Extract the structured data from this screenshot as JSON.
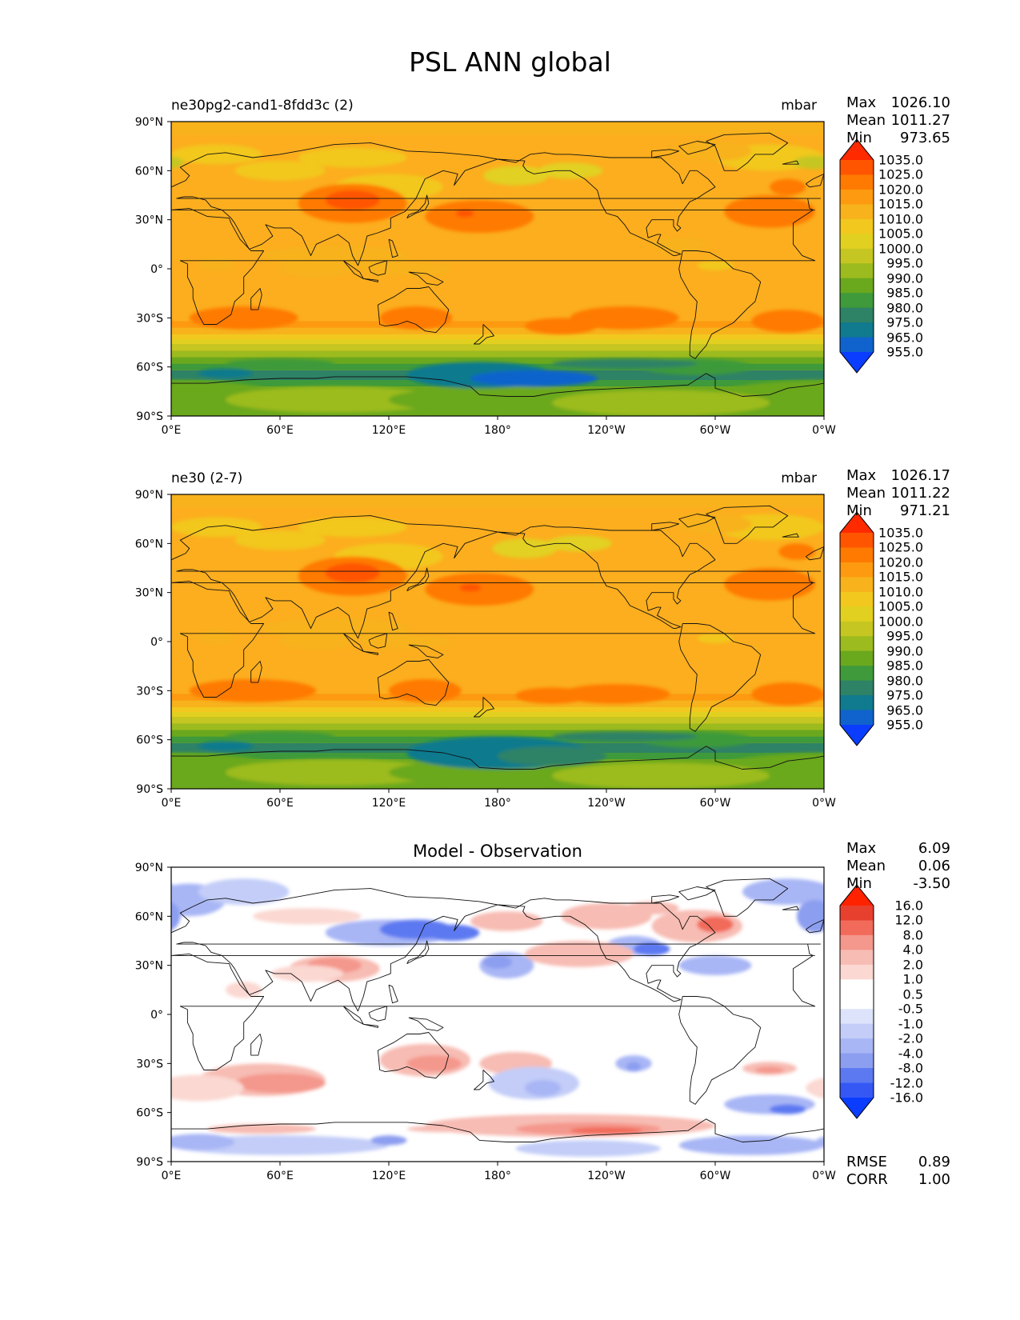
{
  "title": "PSL ANN global",
  "chart_data": [
    {
      "type": "heatmap",
      "subtitle_left": "ne30pg2-cand1-8fdd3c (2)",
      "subtitle_right": "mbar",
      "stats": [
        {
          "label": "Max",
          "value": "1026.10"
        },
        {
          "label": "Mean",
          "value": "1011.27"
        },
        {
          "label": "Min",
          "value": "973.65"
        }
      ],
      "x_ticks": [
        "0°E",
        "60°E",
        "120°E",
        "180°",
        "120°W",
        "60°W",
        "0°W"
      ],
      "y_ticks": [
        "90°N",
        "60°N",
        "30°N",
        "0°",
        "30°S",
        "60°S",
        "90°S"
      ],
      "colorbar_levels": [
        "1035.0",
        "1025.0",
        "1020.0",
        "1015.0",
        "1010.0",
        "1005.0",
        "1000.0",
        "995.0",
        "990.0",
        "985.0",
        "980.0",
        "975.0",
        "965.0",
        "955.0"
      ],
      "extra_stats": []
    },
    {
      "type": "heatmap",
      "subtitle_left": "ne30 (2-7)",
      "subtitle_right": "mbar",
      "stats": [
        {
          "label": "Max",
          "value": "1026.17"
        },
        {
          "label": "Mean",
          "value": "1011.22"
        },
        {
          "label": "Min",
          "value": "971.21"
        }
      ],
      "x_ticks": [
        "0°E",
        "60°E",
        "120°E",
        "180°",
        "120°W",
        "60°W",
        "0°W"
      ],
      "y_ticks": [
        "90°N",
        "60°N",
        "30°N",
        "0°",
        "30°S",
        "60°S",
        "90°S"
      ],
      "colorbar_levels": [
        "1035.0",
        "1025.0",
        "1020.0",
        "1015.0",
        "1010.0",
        "1005.0",
        "1000.0",
        "995.0",
        "990.0",
        "985.0",
        "980.0",
        "975.0",
        "965.0",
        "955.0"
      ],
      "extra_stats": []
    },
    {
      "type": "heatmap",
      "title": "Model - Observation",
      "stats": [
        {
          "label": "Max",
          "value": "6.09"
        },
        {
          "label": "Mean",
          "value": "0.06"
        },
        {
          "label": "Min",
          "value": "-3.50"
        }
      ],
      "x_ticks": [
        "0°E",
        "60°E",
        "120°E",
        "180°",
        "120°W",
        "60°W",
        "0°W"
      ],
      "y_ticks": [
        "90°N",
        "60°N",
        "30°N",
        "0°",
        "30°S",
        "60°S",
        "90°S"
      ],
      "colorbar_levels": [
        "16.0",
        "12.0",
        "8.0",
        "4.0",
        "2.0",
        "1.0",
        "0.5",
        "-0.5",
        "-1.0",
        "-2.0",
        "-4.0",
        "-8.0",
        "-12.0",
        "-16.0"
      ],
      "extra_stats": [
        {
          "label": "RMSE",
          "value": "0.89"
        },
        {
          "label": "CORR",
          "value": "1.00"
        }
      ]
    }
  ],
  "colors": {
    "psl_levels": [
      "#ff2a00",
      "#ff5500",
      "#ff7a00",
      "#fd9a10",
      "#f7b21c",
      "#f2c81e",
      "#e2d020",
      "#c6c622",
      "#9cbb1e",
      "#6aa81e",
      "#3e9a3a",
      "#2e8266",
      "#107a8e",
      "#1063cc",
      "#0a3dff"
    ],
    "diff_levels": [
      "#ff2200",
      "#e8402e",
      "#f16a5a",
      "#f4978c",
      "#f7bcb3",
      "#fbd8d2",
      "#ffffff",
      "#ffffff",
      "#dde3fb",
      "#c3cdf8",
      "#a8b6f5",
      "#8c9ef0",
      "#5d79f1",
      "#3558f5",
      "#0a3dff"
    ]
  }
}
